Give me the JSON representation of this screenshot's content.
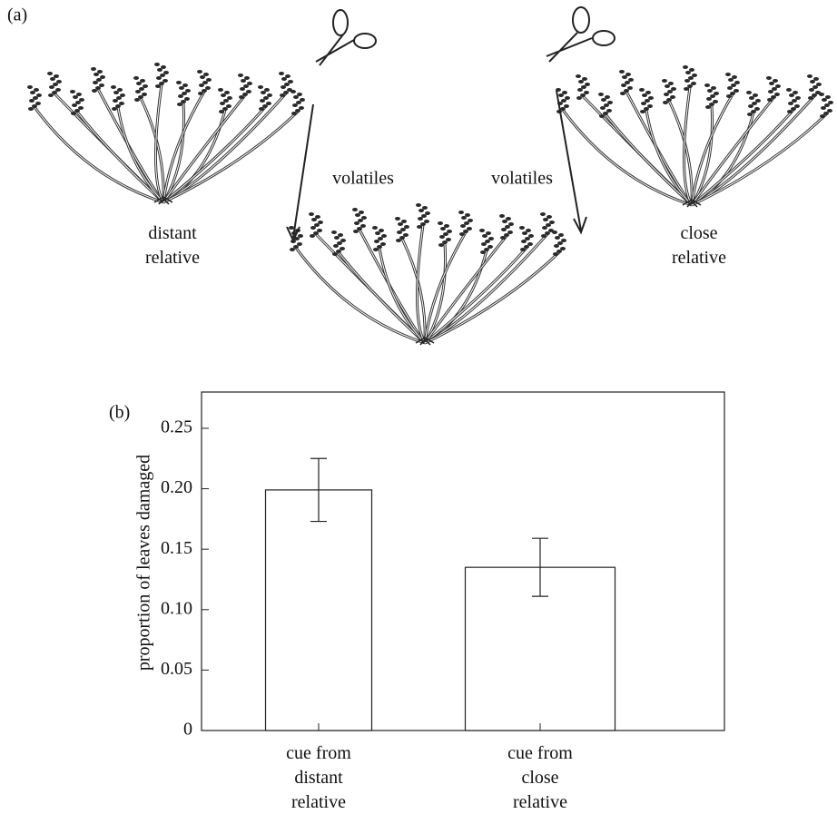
{
  "illustration": {
    "panel_label": "(a)",
    "left_arrow_label": "volatiles",
    "right_arrow_label": "volatiles",
    "left_plant_label": "distant\nrelative",
    "right_plant_label": "close\nrelative"
  },
  "chart_data": {
    "type": "bar",
    "panel_label": "(b)",
    "y_label": "proportion of leaves damaged",
    "categories": [
      "cue from\ndistant\nrelative",
      "cue from\nclose\nrelative"
    ],
    "values": [
      0.199,
      0.135
    ],
    "error": [
      0.026,
      0.024
    ],
    "color": "#ffffff",
    "ylim": [
      0,
      0.28
    ],
    "yticks": [
      0,
      0.05,
      {
        "value": 0.1,
        "label": "0.10"
      },
      0.15,
      {
        "value": 0.2,
        "label": "0.20"
      },
      0.25
    ]
  }
}
